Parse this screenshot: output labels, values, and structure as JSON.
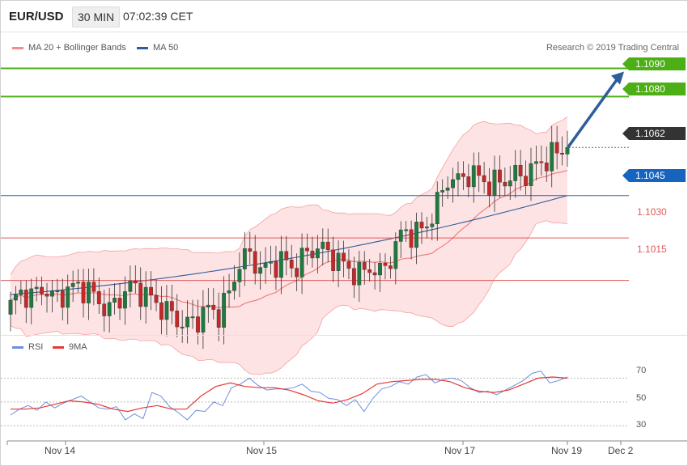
{
  "header": {
    "pair": "EUR/USD",
    "timeframe": "30 MIN",
    "clock": "07:02:39 CET"
  },
  "main_legend": {
    "bollinger_label": "MA 20 + Bollinger Bands",
    "ma50_label": "MA 50",
    "copyright": "Research © 2019 Trading Central"
  },
  "levels": [
    {
      "price": "1.1090",
      "kind": "target",
      "color": "#4caf16"
    },
    {
      "price": "1.1080",
      "kind": "target",
      "color": "#4caf16"
    },
    {
      "price": "1.1062",
      "kind": "last",
      "color": "#333333"
    },
    {
      "price": "1.1045",
      "kind": "pivot",
      "color": "#1565c0"
    },
    {
      "price": "1.1030",
      "kind": "support",
      "color": "#e05a5a"
    },
    {
      "price": "1.1015",
      "kind": "support",
      "color": "#e05a5a"
    }
  ],
  "rsi_legend": {
    "rsi_label": "RSI",
    "ma_label": "9MA"
  },
  "rsi_axis": [
    "70",
    "50",
    "30"
  ],
  "x_axis": [
    "Nov 14",
    "Nov 15",
    "Nov 17",
    "Nov 19",
    "Dec 2"
  ],
  "colors": {
    "up_candle": "#1e7a3e",
    "down_candle": "#c62828",
    "band_fill": "#fde3e3",
    "band_line": "#f5a0a0",
    "ma20": "#f08080",
    "ma50": "#2f5d9c",
    "rsi": "#6f8fdc",
    "rsi_ma": "#e53935",
    "arrow": "#2f5d9c"
  },
  "chart_data": [
    {
      "type": "candlestick",
      "title": "EUR/USD",
      "timeframe": "30 MIN",
      "ylim": [
        1.0998,
        1.1101
      ],
      "x_ticks": [
        "Nov 14",
        "Nov 15",
        "Nov 17",
        "Nov 19",
        "Dec 2"
      ],
      "close_path": [
        1.1006,
        1.1011,
        1.1009,
        1.1013,
        1.1008,
        1.1011,
        1.1013,
        1.1012,
        1.1008,
        1.1004,
        1.1009,
        1.1013,
        1.1011,
        1.1008,
        1.1005,
        1.1002,
        1.0999,
        1.1001,
        1.1005,
        1.1003,
        1.101,
        1.1022,
        1.1024,
        1.1018,
        1.1021,
        1.1022,
        1.1019,
        1.1024,
        1.1027,
        1.1025,
        1.1022,
        1.1019,
        1.1017,
        1.102,
        1.1017,
        1.1025,
        1.1033,
        1.1031,
        1.1034,
        1.1041,
        1.1051,
        1.105,
        1.1053,
        1.1051,
        1.1049,
        1.105,
        1.1052,
        1.1052,
        1.1055,
        1.1058,
        1.106,
        1.1062
      ],
      "series": [
        {
          "name": "MA 20 + Bollinger Bands",
          "values": "middle band with upper/lower envelope"
        },
        {
          "name": "MA 50",
          "start": 1.101,
          "end": 1.1045
        }
      ],
      "levels": [
        1.109,
        1.108,
        1.1062,
        1.1045,
        1.103,
        1.1015
      ],
      "last_price": 1.1062,
      "projection": {
        "from": 1.1062,
        "to": 1.109
      }
    },
    {
      "type": "line",
      "title": "",
      "ylim": [
        20,
        90
      ],
      "y_ticks": [
        70,
        50,
        30
      ],
      "series": [
        {
          "name": "RSI",
          "values": [
            39,
            44,
            47,
            43,
            50,
            45,
            49,
            52,
            55,
            50,
            45,
            44,
            46,
            35,
            40,
            36,
            58,
            55,
            46,
            41,
            35,
            43,
            42,
            50,
            47,
            62,
            65,
            70,
            64,
            60,
            61,
            61,
            62,
            65,
            59,
            58,
            53,
            52,
            47,
            52,
            42,
            53,
            61,
            63,
            67,
            65,
            71,
            73,
            66,
            69,
            70,
            68,
            62,
            58,
            59,
            56,
            60,
            64,
            68,
            74,
            76,
            66,
            68,
            71
          ]
        },
        {
          "name": "9MA",
          "values": [
            44,
            44,
            45,
            48,
            51,
            50,
            48,
            44,
            42,
            45,
            47,
            44,
            44,
            55,
            63,
            66,
            63,
            62,
            62,
            60,
            56,
            51,
            49,
            52,
            57,
            65,
            67,
            68,
            69,
            69,
            67,
            62,
            59,
            58,
            60,
            65,
            70,
            71,
            70
          ]
        }
      ]
    }
  ]
}
